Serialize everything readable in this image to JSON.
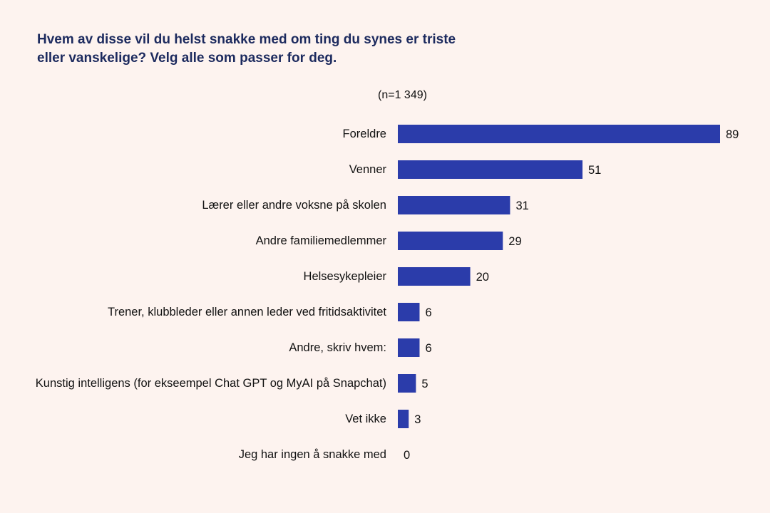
{
  "chart_data": {
    "type": "bar",
    "orientation": "horizontal",
    "title": "Hvem av disse vil du helst snakke med om ting du synes er triste eller vanskelige? Velg alle som passer for deg.",
    "subtitle": "(n=1 349)",
    "categories": [
      "Foreldre",
      "Venner",
      "Lærer eller andre voksne på skolen",
      "Andre familiemedlemmer",
      "Helsesykepleier",
      "Trener, klubbleder eller annen leder ved fritidsaktivitet",
      "Andre, skriv hvem:",
      "Kunstig intelligens (for ekseempel Chat GPT og MyAI på Snapchat)",
      "Vet ikke",
      "Jeg har ingen å snakke med"
    ],
    "values": [
      89,
      51,
      31,
      29,
      20,
      6,
      6,
      5,
      3,
      0
    ],
    "xlim": [
      0,
      89
    ],
    "grid": false,
    "data_labels": true,
    "colors": {
      "bar": "#2b3caa",
      "title": "#1c2a5e",
      "background": "#fdf3ef"
    }
  }
}
